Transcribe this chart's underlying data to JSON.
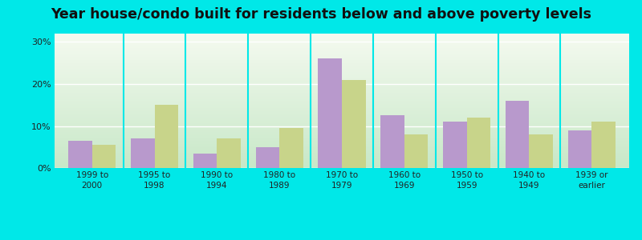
{
  "title": "Year house/condo built for residents below and above poverty levels",
  "categories": [
    "1999 to\n2000",
    "1995 to\n1998",
    "1990 to\n1994",
    "1980 to\n1989",
    "1970 to\n1979",
    "1960 to\n1969",
    "1950 to\n1959",
    "1940 to\n1949",
    "1939 or\nearlier"
  ],
  "below_poverty": [
    6.5,
    7.0,
    3.5,
    5.0,
    26.0,
    12.5,
    11.0,
    16.0,
    9.0
  ],
  "above_poverty": [
    5.5,
    15.0,
    7.0,
    9.5,
    21.0,
    8.0,
    12.0,
    8.0,
    11.0
  ],
  "below_color": "#b899cc",
  "above_color": "#c8d48a",
  "bg_outer": "#00e8e8",
  "yticks": [
    0,
    10,
    20,
    30
  ],
  "ylim": [
    0,
    32
  ],
  "bar_width": 0.38,
  "title_fontsize": 12.5,
  "tick_fontsize": 7.5,
  "legend_fontsize": 8.5,
  "grad_top_color": "#f5faf0",
  "grad_bottom_color": "#c8e8c8"
}
